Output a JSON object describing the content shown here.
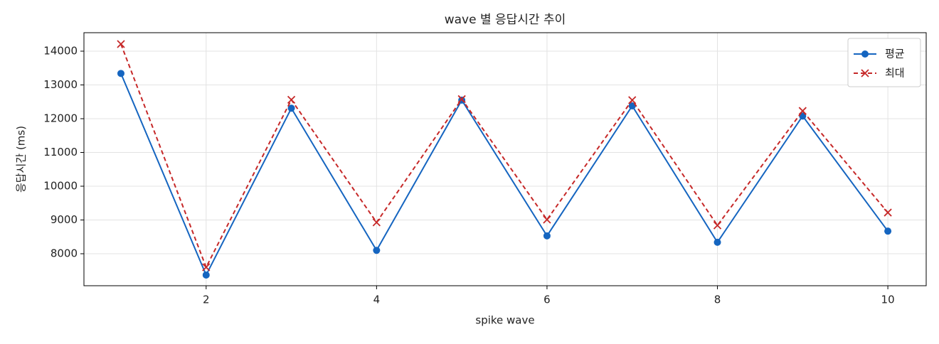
{
  "chart_data": {
    "type": "line",
    "title": "wave 별 응답시간 추이",
    "x_label": "spike wave",
    "y_label": "응답시간 (ms)",
    "x": [
      1,
      2,
      3,
      4,
      5,
      6,
      7,
      8,
      9,
      10
    ],
    "series": [
      {
        "name": "평균",
        "color": "#1565c0",
        "marker": "circle",
        "dash": false,
        "values": [
          13340,
          7370,
          12310,
          8100,
          12550,
          8530,
          12380,
          8340,
          12080,
          8670
        ]
      },
      {
        "name": "최대",
        "color": "#c62828",
        "marker": "x",
        "dash": true,
        "values": [
          14210,
          7600,
          12560,
          8930,
          12580,
          9010,
          12550,
          8840,
          12230,
          9220
        ]
      }
    ],
    "xlim": [
      0.566,
      10.45
    ],
    "ylim": [
      7053,
      14547
    ],
    "xticks": [
      2,
      4,
      6,
      8,
      10
    ],
    "yticks": [
      8000,
      9000,
      10000,
      11000,
      12000,
      13000,
      14000
    ],
    "grid": true,
    "legend": "upper right"
  }
}
